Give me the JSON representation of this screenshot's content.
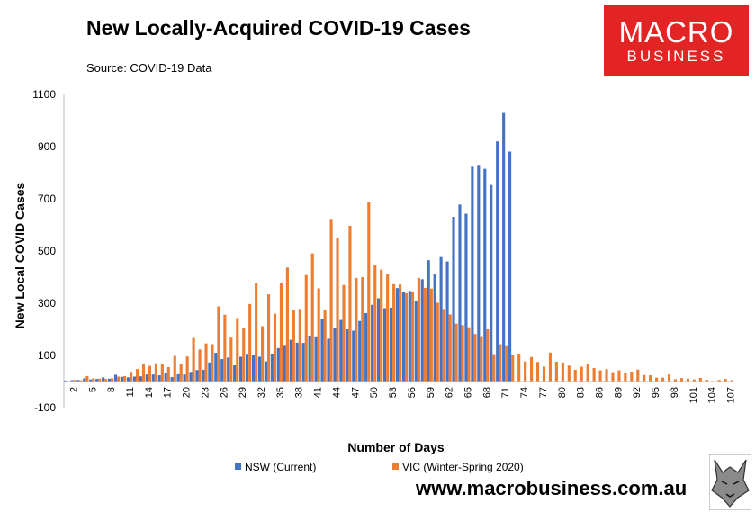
{
  "header": {
    "title": "New Locally-Acquired COVID-19 Cases",
    "source": "Source: COVID-19 Data"
  },
  "logo": {
    "top": "MACRO",
    "bottom": "BUSINESS"
  },
  "footer": {
    "url": "www.macrobusiness.com.au"
  },
  "colors": {
    "nsw": "#4472c4",
    "vic": "#ed7d31",
    "brand_red": "#e32424"
  },
  "chart_data": {
    "type": "bar",
    "title": "New Locally-Acquired COVID-19 Cases",
    "xlabel": "Number of Days",
    "ylabel": "New Local COVID Cases",
    "ylim": [
      -100,
      1100
    ],
    "yticks": [
      -100,
      100,
      300,
      500,
      700,
      900,
      1100
    ],
    "xtick_labels": [
      "2",
      "5",
      "8",
      "11",
      "14",
      "17",
      "20",
      "23",
      "26",
      "29",
      "32",
      "35",
      "38",
      "41",
      "44",
      "47",
      "50",
      "53",
      "56",
      "59",
      "62",
      "65",
      "68",
      "71",
      "74",
      "77",
      "80",
      "83",
      "86",
      "89",
      "92",
      "95",
      "98",
      "101",
      "104",
      "107"
    ],
    "x_start": 1,
    "legend_position": "bottom",
    "grid": false,
    "series": [
      {
        "name": "NSW (Current)",
        "values": [
          4,
          5,
          6,
          12,
          8,
          10,
          16,
          11,
          26,
          18,
          16,
          19,
          20,
          27,
          27,
          24,
          32,
          17,
          28,
          27,
          37,
          44,
          45,
          73,
          110,
          86,
          92,
          62,
          95,
          106,
          102,
          95,
          77,
          107,
          128,
          140,
          160,
          149,
          148,
          176,
          173,
          240,
          164,
          207,
          236,
          200,
          195,
          232,
          262,
          294,
          319,
          281,
          283,
          358,
          345,
          347,
          309,
          392,
          465,
          411,
          477,
          460,
          631,
          678,
          643,
          823,
          830,
          815,
          753,
          920,
          1029,
          881
        ]
      },
      {
        "name": "VIC (Winter-Spring 2020)",
        "values": [
          0,
          6,
          5,
          21,
          12,
          11,
          10,
          13,
          19,
          21,
          37,
          48,
          66,
          60,
          70,
          69,
          55,
          98,
          68,
          96,
          167,
          123,
          146,
          143,
          288,
          256,
          168,
          243,
          206,
          297,
          377,
          212,
          334,
          260,
          378,
          437,
          275,
          278,
          408,
          491,
          357,
          275,
          623,
          548,
          370,
          597,
          397,
          400,
          686,
          445,
          429,
          413,
          373,
          372,
          338,
          342,
          397,
          359,
          356,
          302,
          278,
          257,
          222,
          216,
          208,
          182,
          174,
          200,
          105,
          143,
          139,
          103,
          107,
          77,
          94,
          75,
          57,
          111,
          76,
          73,
          61,
          45,
          57,
          67,
          52,
          43,
          47,
          36,
          43,
          34,
          38,
          46,
          25,
          24,
          15,
          15,
          27,
          9,
          13,
          11,
          8,
          14,
          7,
          2,
          6,
          10,
          5
        ]
      }
    ]
  }
}
